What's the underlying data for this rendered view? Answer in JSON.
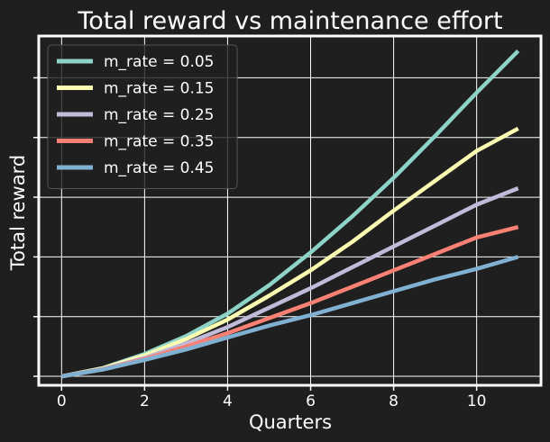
{
  "chart_data": {
    "type": "line",
    "title": "Total reward vs maintenance effort",
    "xlabel": "Quarters",
    "ylabel": "Total reward",
    "x": [
      0,
      1,
      2,
      3,
      4,
      5,
      6,
      7,
      8,
      9,
      10,
      11
    ],
    "xlim": [
      -0.55,
      11.55
    ],
    "ylim": [
      -0.3,
      11.4
    ],
    "xticks": [
      0,
      2,
      4,
      6,
      8,
      10
    ],
    "ytick_values": [
      0,
      2,
      4,
      6,
      8,
      10
    ],
    "yticks_labeled": false,
    "grid": true,
    "legend_position": "top-left",
    "series": [
      {
        "name": "m_rate = 0.05",
        "color": "#8dd3c7",
        "values": [
          0.0,
          0.28,
          0.75,
          1.35,
          2.1,
          3.05,
          4.15,
          5.35,
          6.65,
          8.05,
          9.5,
          10.9
        ]
      },
      {
        "name": "m_rate = 0.15",
        "color": "#feffb3",
        "values": [
          0.0,
          0.27,
          0.7,
          1.25,
          1.9,
          2.7,
          3.55,
          4.5,
          5.55,
          6.55,
          7.55,
          8.3
        ]
      },
      {
        "name": "m_rate = 0.25",
        "color": "#bfbbd9",
        "values": [
          0.0,
          0.25,
          0.62,
          1.1,
          1.65,
          2.3,
          2.95,
          3.65,
          4.35,
          5.05,
          5.75,
          6.3
        ]
      },
      {
        "name": "m_rate = 0.35",
        "color": "#fa8174",
        "values": [
          0.0,
          0.24,
          0.58,
          1.0,
          1.45,
          1.95,
          2.45,
          3.0,
          3.55,
          4.1,
          4.65,
          5.0
        ]
      },
      {
        "name": "m_rate = 0.45",
        "color": "#81b1d2",
        "values": [
          0.0,
          0.23,
          0.55,
          0.9,
          1.3,
          1.7,
          2.05,
          2.45,
          2.85,
          3.25,
          3.6,
          4.0
        ]
      }
    ]
  }
}
